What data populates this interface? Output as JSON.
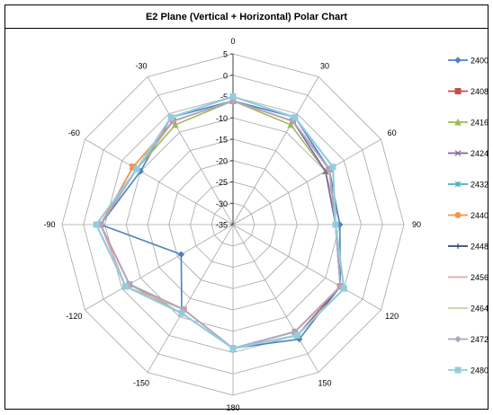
{
  "title": "E2 Plane (Vertical + Horizontal) Polar Chart",
  "chart_data": {
    "type": "radar",
    "title": "E2 Plane (Vertical + Horizontal) Polar Chart",
    "angles": [
      0,
      30,
      60,
      90,
      120,
      150,
      180,
      -150,
      -120,
      -90,
      -60,
      -30
    ],
    "angle_labels": [
      "0",
      "30",
      "60",
      "90",
      "120",
      "150",
      "180",
      "-150",
      "-120",
      "-90",
      "-60",
      "-30"
    ],
    "radial_ticks": [
      "5",
      "0",
      "-5",
      "-10",
      "-15",
      "-20",
      "-25",
      "-30",
      "-35"
    ],
    "rlim": [
      -35,
      5
    ],
    "grid": true,
    "legend_position": "right",
    "series": [
      {
        "name": "2400",
        "color": "#4F81BD",
        "marker": "diamond",
        "values": [
          -6,
          -6,
          -9,
          -10,
          -6,
          -4,
          -6,
          -11,
          -21,
          -4,
          -10,
          -6
        ]
      },
      {
        "name": "2408",
        "color": "#C0504D",
        "marker": "square",
        "values": [
          -6,
          -7,
          -9,
          -11,
          -6,
          -5,
          -6,
          -11,
          -6,
          -4,
          -8,
          -7
        ]
      },
      {
        "name": "2416",
        "color": "#9BBB59",
        "marker": "triangle",
        "values": [
          -6,
          -8,
          -10,
          -11,
          -6,
          -6,
          -6,
          -11,
          -7,
          -4,
          -9,
          -8
        ]
      },
      {
        "name": "2424",
        "color": "#8064A2",
        "marker": "x",
        "values": [
          -6,
          -7,
          -10,
          -11,
          -6,
          -6,
          -6,
          -12,
          -7,
          -4,
          -9,
          -7
        ]
      },
      {
        "name": "2432",
        "color": "#4BACC6",
        "marker": "asterisk",
        "values": [
          -6,
          -7,
          -9,
          -11,
          -6,
          -6,
          -6,
          -12,
          -7,
          -4,
          -9,
          -7
        ]
      },
      {
        "name": "2440",
        "color": "#F79646",
        "marker": "circle",
        "values": [
          -6,
          -7,
          -9,
          -11,
          -6,
          -6,
          -6,
          -12,
          -7,
          -4,
          -8,
          -7
        ]
      },
      {
        "name": "2448",
        "color": "#2C4D75",
        "marker": "plus",
        "values": [
          -6,
          -7,
          -9,
          -11,
          -6,
          -6,
          -6,
          -12,
          -7,
          -4,
          -9,
          -7
        ]
      },
      {
        "name": "2456",
        "color": "#E6A9A4",
        "marker": "none",
        "values": [
          -6,
          -7,
          -9,
          -11,
          -6,
          -6,
          -6,
          -12,
          -6,
          -4,
          -9,
          -7
        ]
      },
      {
        "name": "2464",
        "color": "#C3D69B",
        "marker": "none",
        "values": [
          -6,
          -7,
          -9,
          -11,
          -6,
          -6,
          -6,
          -12,
          -7,
          -4,
          -9,
          -7
        ]
      },
      {
        "name": "2472",
        "color": "#B3A2C7",
        "marker": "diamond",
        "values": [
          -6,
          -7,
          -9,
          -11,
          -6,
          -6,
          -6,
          -12,
          -7,
          -4,
          -9,
          -7
        ]
      },
      {
        "name": "2480",
        "color": "#93CDDD",
        "marker": "square",
        "values": [
          -5,
          -6,
          -8,
          -11,
          -5,
          -5,
          -6,
          -11,
          -6,
          -3,
          -9,
          -6
        ]
      }
    ]
  }
}
